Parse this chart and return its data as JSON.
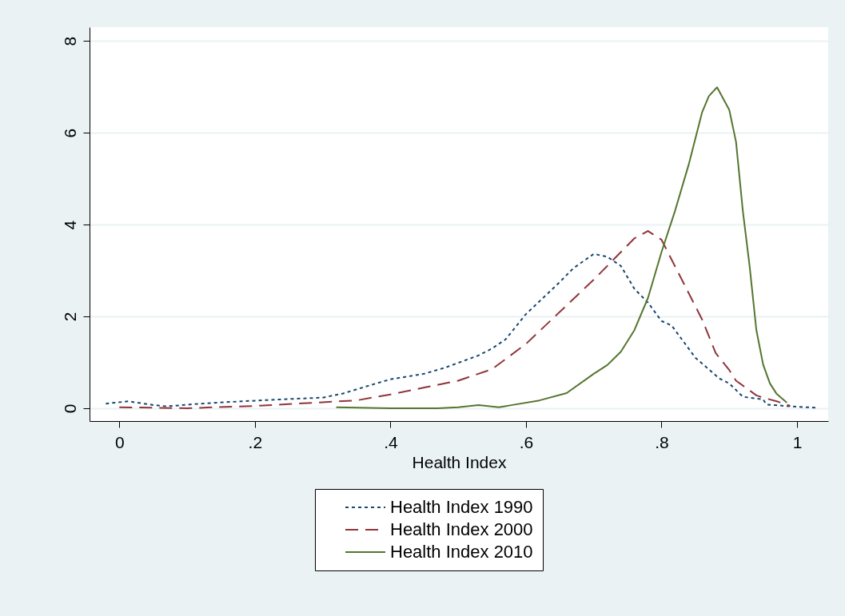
{
  "chart_data": {
    "type": "line",
    "xlabel": "Health Index",
    "xlim": [
      -0.044,
      1.046
    ],
    "ylim": [
      -0.28,
      8.3
    ],
    "xticks": [
      0,
      {
        "value": 0.2,
        "label": ".2"
      },
      {
        "value": 0.4,
        "label": ".4"
      },
      {
        "value": 0.6,
        "label": ".6"
      },
      {
        "value": 0.8,
        "label": ".8"
      },
      1
    ],
    "yticks": [
      0,
      2,
      4,
      6,
      8
    ],
    "grid": "y",
    "legend": "bottom",
    "marker": "none",
    "series": [
      {
        "name": "Health Index 1990",
        "color": "#1a476f",
        "line_style": "dotted",
        "x": [
          -0.02,
          0.013,
          0.05,
          0.07,
          0.12,
          0.18,
          0.25,
          0.3,
          0.33,
          0.37,
          0.4,
          0.45,
          0.48,
          0.53,
          0.55,
          0.57,
          0.6,
          0.65,
          0.67,
          0.7,
          0.72,
          0.74,
          0.76,
          0.78,
          0.8,
          0.815,
          0.85,
          0.885,
          0.9,
          0.92,
          0.95,
          0.955,
          1.0,
          1.03
        ],
        "values": [
          0.1,
          0.15,
          0.07,
          0.04,
          0.1,
          0.15,
          0.2,
          0.23,
          0.32,
          0.5,
          0.63,
          0.75,
          0.88,
          1.15,
          1.3,
          1.5,
          2.05,
          2.75,
          3.05,
          3.36,
          3.3,
          3.1,
          2.6,
          2.3,
          1.9,
          1.8,
          1.1,
          0.65,
          0.54,
          0.25,
          0.19,
          0.08,
          0.03,
          0.01
        ]
      },
      {
        "name": "Health Index 2000",
        "color": "#90353b",
        "line_style": "dashed",
        "x": [
          0,
          0.1,
          0.2,
          0.3,
          0.35,
          0.4,
          0.45,
          0.5,
          0.55,
          0.6,
          0.65,
          0.7,
          0.74,
          0.76,
          0.78,
          0.8,
          0.83,
          0.86,
          0.88,
          0.9,
          0.91,
          0.94,
          0.95,
          0.97,
          0.99
        ],
        "values": [
          0.02,
          0.0,
          0.05,
          0.13,
          0.17,
          0.3,
          0.45,
          0.6,
          0.85,
          1.4,
          2.1,
          2.8,
          3.4,
          3.7,
          3.86,
          3.67,
          2.8,
          1.93,
          1.2,
          0.83,
          0.6,
          0.28,
          0.23,
          0.15,
          0.05
        ]
      },
      {
        "name": "Health Index 2010",
        "color": "#55752f",
        "line_style": "solid",
        "x": [
          0.32,
          0.4,
          0.47,
          0.5,
          0.53,
          0.56,
          0.58,
          0.62,
          0.66,
          0.7,
          0.72,
          0.74,
          0.76,
          0.78,
          0.8,
          0.82,
          0.84,
          0.86,
          0.87,
          0.882,
          0.9,
          0.91,
          0.92,
          0.93,
          0.94,
          0.95,
          0.96,
          0.97,
          0.985
        ],
        "values": [
          0.02,
          0.0,
          0.0,
          0.02,
          0.07,
          0.02,
          0.07,
          0.17,
          0.33,
          0.75,
          0.94,
          1.23,
          1.7,
          2.4,
          3.4,
          4.3,
          5.3,
          6.45,
          6.8,
          6.99,
          6.5,
          5.8,
          4.3,
          3.1,
          1.7,
          0.95,
          0.54,
          0.31,
          0.12
        ]
      }
    ]
  }
}
